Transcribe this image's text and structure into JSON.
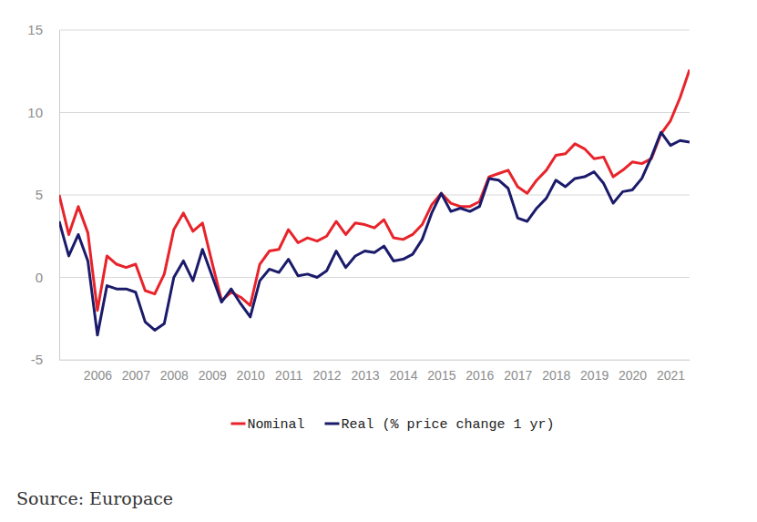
{
  "chart_data": {
    "type": "line",
    "categories": [
      null,
      null,
      null,
      null,
      "2006",
      null,
      null,
      null,
      "2007",
      null,
      null,
      null,
      "2008",
      null,
      null,
      null,
      "2009",
      null,
      null,
      null,
      "2010",
      null,
      null,
      null,
      "2011",
      null,
      null,
      null,
      "2012",
      null,
      null,
      null,
      "2013",
      null,
      null,
      null,
      "2014",
      null,
      null,
      null,
      "2015",
      null,
      null,
      null,
      "2016",
      null,
      null,
      null,
      "2017",
      null,
      null,
      null,
      "2018",
      null,
      null,
      null,
      "2019",
      null,
      null,
      null,
      "2020",
      null,
      null,
      null,
      "2021",
      null,
      null
    ],
    "series": [
      {
        "name": "Nominal",
        "color": "#e8232a",
        "values": [
          5.0,
          2.6,
          4.3,
          2.7,
          -2.0,
          1.3,
          0.8,
          0.6,
          0.8,
          -0.8,
          -1.0,
          0.2,
          2.9,
          3.9,
          2.8,
          3.3,
          0.9,
          -1.4,
          -0.9,
          -1.2,
          -1.7,
          0.8,
          1.6,
          1.7,
          2.9,
          2.1,
          2.4,
          2.2,
          2.5,
          3.4,
          2.6,
          3.3,
          3.2,
          3.0,
          3.5,
          2.4,
          2.3,
          2.6,
          3.2,
          4.4,
          5.1,
          4.5,
          4.3,
          4.3,
          4.6,
          6.1,
          6.3,
          6.5,
          5.5,
          5.1,
          5.9,
          6.5,
          7.4,
          7.5,
          8.1,
          7.8,
          7.2,
          7.3,
          6.1,
          6.5,
          7.0,
          6.9,
          7.2,
          8.7,
          9.5,
          10.9,
          12.6
        ]
      },
      {
        "name": "Real (% price change 1 yr)",
        "color": "#1b1b6b",
        "values": [
          3.4,
          1.3,
          2.6,
          1.0,
          -3.5,
          -0.5,
          -0.7,
          -0.7,
          -0.9,
          -2.7,
          -3.2,
          -2.8,
          0.0,
          1.0,
          -0.2,
          1.7,
          0.1,
          -1.5,
          -0.7,
          -1.6,
          -2.4,
          -0.2,
          0.5,
          0.3,
          1.1,
          0.1,
          0.2,
          0.0,
          0.4,
          1.6,
          0.6,
          1.3,
          1.6,
          1.5,
          1.9,
          1.0,
          1.1,
          1.4,
          2.3,
          3.9,
          5.1,
          4.0,
          4.2,
          4.0,
          4.3,
          6.0,
          5.9,
          5.4,
          3.6,
          3.4,
          4.2,
          4.8,
          5.9,
          5.5,
          6.0,
          6.1,
          6.4,
          5.7,
          4.5,
          5.2,
          5.3,
          6.0,
          7.3,
          8.8,
          8.0,
          8.3,
          8.2
        ]
      }
    ],
    "ylim": [
      -5,
      15
    ],
    "yticks": [
      -5,
      0,
      5,
      10,
      15
    ],
    "grid": true,
    "legend": "bottom",
    "source": "Source: Europace"
  }
}
